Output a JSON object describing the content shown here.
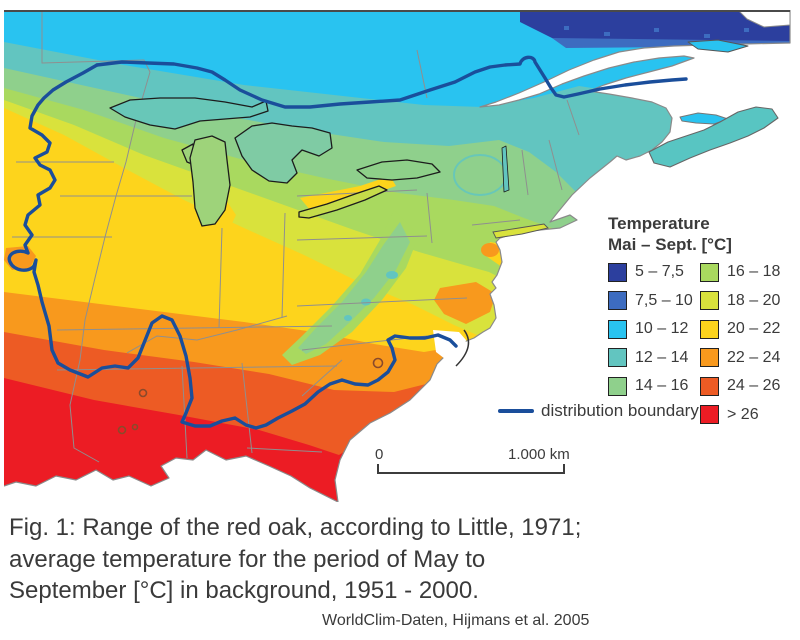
{
  "figure": {
    "caption_lines": [
      "Fig. 1: Range of the red oak, according to Little, 1971;",
      "average temperature for the period of May to",
      "September [°C] in background, 1951 - 2000."
    ],
    "attribution": "WorldClim-Daten, Hijmans et al. 2005"
  },
  "legend": {
    "title": "Temperature",
    "subtitle": "Mai – Sept. [°C]",
    "columns": [
      [
        {
          "label": "5 – 7,5",
          "color": "#2c3f9e"
        },
        {
          "label": "7,5 – 10",
          "color": "#3d6cc0"
        },
        {
          "label": "10 – 12",
          "color": "#29c3f0"
        },
        {
          "label": "12 – 14",
          "color": "#62c5c0"
        },
        {
          "label": "14 – 16",
          "color": "#8fd08c"
        }
      ],
      [
        {
          "label": "16 – 18",
          "color": "#a9d95f"
        },
        {
          "label": "18 – 20",
          "color": "#d9e23c"
        },
        {
          "label": "20 – 22",
          "color": "#fdd41c"
        },
        {
          "label": "22 – 24",
          "color": "#f8991d"
        },
        {
          "label": "24 – 26",
          "color": "#ed5b24"
        },
        {
          "label": "> 26",
          "color": "#ec1c24"
        }
      ]
    ],
    "boundary_label": "distribution boundary",
    "boundary_color": "#1a4e9b"
  },
  "scale_bar": {
    "start": "0",
    "end": "1.000 km"
  }
}
